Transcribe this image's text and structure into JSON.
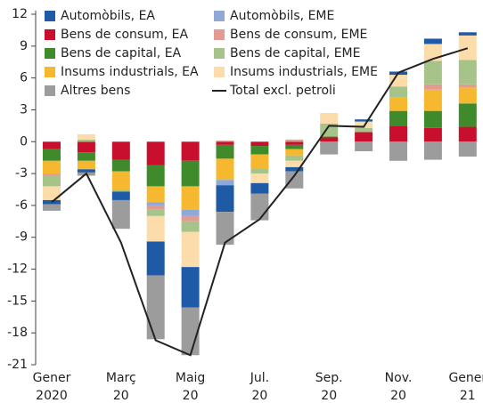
{
  "chart_data": {
    "type": "bar",
    "categories": [
      "Gener 2020",
      null,
      "Març 20",
      null,
      "Maig 20",
      null,
      "Jul. 20",
      null,
      "Sep. 20",
      null,
      "Nov. 20",
      null,
      "Gener 21"
    ],
    "ylim": [
      -21,
      12
    ],
    "yticks": [
      12,
      9,
      6,
      3,
      0,
      -3,
      -6,
      -9,
      -12,
      -15,
      -18,
      -21
    ],
    "series": [
      {
        "name": "Automòbils, EA",
        "color": "#1f5aa6",
        "values": [
          -0.4,
          -0.3,
          -0.8,
          -3.2,
          -3.8,
          -2.5,
          -1.0,
          -0.4,
          0,
          0.2,
          0.3,
          0.5,
          0.3
        ]
      },
      {
        "name": "Bens de consum, EA",
        "color": "#c8102e",
        "values": [
          -0.7,
          -1.0,
          -1.7,
          -2.2,
          -1.8,
          -0.3,
          -0.4,
          -0.3,
          0.4,
          0.9,
          1.5,
          1.3,
          1.4
        ]
      },
      {
        "name": "Bens de capital, EA",
        "color": "#3f8a2a",
        "values": [
          -1.1,
          -0.8,
          -1.1,
          -2.0,
          -2.4,
          -1.3,
          -0.8,
          -0.4,
          0.1,
          0,
          1.4,
          1.6,
          2.2
        ]
      },
      {
        "name": "Insums industrials, EA",
        "color": "#f5b82e",
        "values": [
          -1.2,
          -0.8,
          -1.7,
          -1.5,
          -2.2,
          -2.0,
          -1.3,
          -0.6,
          0,
          0,
          1.3,
          2.0,
          1.5
        ]
      },
      {
        "name": "Altres bens",
        "color": "#9c9c9c",
        "values": [
          -0.6,
          -0.3,
          -2.7,
          -6.0,
          -4.5,
          -3.1,
          -2.5,
          -1.6,
          -1.2,
          -0.9,
          -1.8,
          -1.7,
          -1.4
        ]
      },
      {
        "name": "Automòbils, EME",
        "color": "#8fa8d8",
        "values": [
          0,
          0,
          0,
          -0.3,
          -0.6,
          -0.5,
          0,
          0,
          0,
          0,
          0,
          0,
          0
        ]
      },
      {
        "name": "Bens de consum, EME",
        "color": "#e39a92",
        "values": [
          -0.2,
          0,
          0,
          -0.4,
          -0.5,
          0.1,
          0,
          0.2,
          0,
          0,
          0,
          0.5,
          0.3
        ]
      },
      {
        "name": "Bens de capital, EME",
        "color": "#a6c48a",
        "values": [
          -1.0,
          0.2,
          -0.2,
          -0.6,
          -1.0,
          0,
          -0.5,
          -0.5,
          1.2,
          0.4,
          1.0,
          2.2,
          2.3
        ]
      },
      {
        "name": "Insums industrials, EME",
        "color": "#fbdcaa",
        "values": [
          -1.3,
          0.5,
          0,
          -2.4,
          -3.3,
          0,
          -0.9,
          -0.6,
          1.0,
          0.6,
          1.1,
          1.6,
          2.3
        ]
      },
      {
        "name": "Total excl. petroli",
        "type": "line",
        "color": "#222222",
        "values": [
          -5.7,
          -3.0,
          -9.5,
          -18.7,
          -20.1,
          -9.5,
          -7.3,
          -3.2,
          1.5,
          1.4,
          6.5,
          7.8,
          8.8
        ]
      }
    ]
  }
}
